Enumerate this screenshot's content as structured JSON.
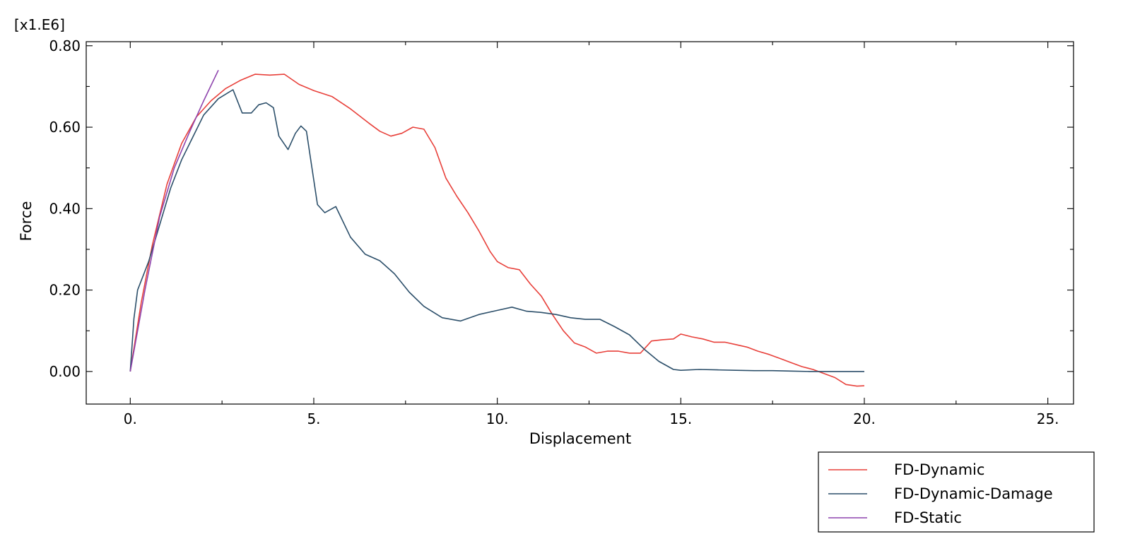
{
  "chart_data": {
    "type": "line",
    "title": "",
    "xlabel": "Displacement",
    "ylabel": "Force",
    "y_multiplier_label": "[x1.E6]",
    "xlim": [
      -1.2,
      25.7
    ],
    "ylim": [
      -0.08,
      0.81
    ],
    "x_ticks": [
      0,
      5,
      10,
      15,
      20,
      25
    ],
    "x_tick_labels": [
      "0.",
      "5.",
      "10.",
      "15.",
      "20.",
      "25."
    ],
    "y_ticks": [
      0.0,
      0.2,
      0.4,
      0.6,
      0.8
    ],
    "y_tick_labels": [
      "0.00",
      "0.20",
      "0.40",
      "0.60",
      "0.80"
    ],
    "grid": false,
    "legend_position": "bottom-right, outside plot",
    "series": [
      {
        "name": "FD-Dynamic",
        "color": "#e8403a",
        "x": [
          0,
          0.3,
          0.6,
          1.0,
          1.4,
          1.8,
          2.2,
          2.6,
          3.0,
          3.4,
          3.8,
          4.2,
          4.6,
          5.0,
          5.5,
          6.0,
          6.5,
          6.8,
          7.1,
          7.4,
          7.7,
          8.0,
          8.3,
          8.6,
          8.9,
          9.2,
          9.5,
          9.8,
          10.0,
          10.3,
          10.6,
          10.9,
          11.2,
          11.5,
          11.8,
          12.1,
          12.4,
          12.7,
          13.0,
          13.3,
          13.6,
          13.9,
          14.2,
          14.5,
          14.8,
          15.0,
          15.3,
          15.6,
          15.9,
          16.2,
          16.5,
          16.8,
          17.1,
          17.4,
          17.7,
          18.0,
          18.3,
          18.6,
          18.9,
          19.2,
          19.5,
          19.8,
          20.0
        ],
        "values": [
          0.0,
          0.17,
          0.31,
          0.46,
          0.56,
          0.625,
          0.665,
          0.695,
          0.715,
          0.73,
          0.728,
          0.73,
          0.705,
          0.69,
          0.675,
          0.645,
          0.61,
          0.59,
          0.578,
          0.585,
          0.6,
          0.595,
          0.55,
          0.475,
          0.43,
          0.39,
          0.345,
          0.295,
          0.27,
          0.255,
          0.25,
          0.215,
          0.185,
          0.14,
          0.1,
          0.07,
          0.06,
          0.045,
          0.05,
          0.05,
          0.045,
          0.045,
          0.075,
          0.078,
          0.08,
          0.092,
          0.085,
          0.08,
          0.072,
          0.072,
          0.066,
          0.06,
          0.05,
          0.042,
          0.032,
          0.022,
          0.012,
          0.005,
          -0.005,
          -0.015,
          -0.032,
          -0.036,
          -0.035
        ]
      },
      {
        "name": "FD-Dynamic-Damage",
        "color": "#2c4f6a",
        "x": [
          0,
          0.1,
          0.2,
          0.5,
          0.8,
          1.1,
          1.4,
          1.7,
          2.0,
          2.4,
          2.8,
          3.05,
          3.3,
          3.5,
          3.7,
          3.9,
          4.05,
          4.3,
          4.5,
          4.65,
          4.8,
          4.95,
          5.1,
          5.3,
          5.6,
          6.0,
          6.4,
          6.8,
          7.2,
          7.6,
          8.0,
          8.5,
          9.0,
          9.5,
          10.0,
          10.4,
          10.8,
          11.2,
          11.6,
          12.0,
          12.4,
          12.8,
          13.2,
          13.6,
          14.0,
          14.4,
          14.8,
          15.0,
          15.5,
          16.0,
          16.5,
          17.0,
          17.5,
          18.0,
          18.5,
          19.0,
          19.5,
          20.0
        ],
        "values": [
          0.0,
          0.13,
          0.2,
          0.27,
          0.36,
          0.45,
          0.52,
          0.575,
          0.63,
          0.67,
          0.692,
          0.635,
          0.635,
          0.655,
          0.66,
          0.648,
          0.578,
          0.545,
          0.585,
          0.603,
          0.59,
          0.5,
          0.41,
          0.39,
          0.405,
          0.33,
          0.288,
          0.272,
          0.24,
          0.195,
          0.16,
          0.132,
          0.124,
          0.14,
          0.15,
          0.158,
          0.148,
          0.145,
          0.14,
          0.132,
          0.128,
          0.128,
          0.11,
          0.09,
          0.055,
          0.025,
          0.005,
          0.003,
          0.005,
          0.004,
          0.003,
          0.002,
          0.002,
          0.001,
          0.0,
          0.0,
          0.0,
          0.0
        ]
      },
      {
        "name": "FD-Static",
        "color": "#8e44ad",
        "x": [
          0,
          0.4,
          0.8,
          1.2,
          1.6,
          2.0,
          2.4
        ],
        "values": [
          0.0,
          0.2,
          0.38,
          0.5,
          0.585,
          0.665,
          0.74
        ]
      }
    ]
  }
}
